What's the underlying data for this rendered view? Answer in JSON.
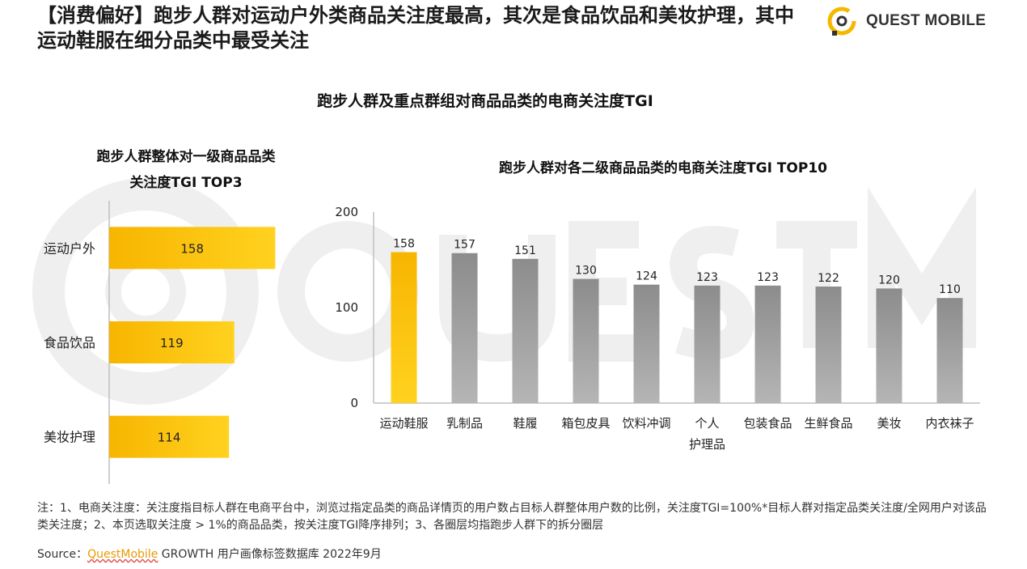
{
  "header": {
    "title": "【消费偏好】跑步人群对运动户外类商品关注度最高，其次是食品饮品和美妆护理，其中运动鞋服在细分品类中最受关注",
    "brand": "QUEST MOBILE",
    "logo_icon": "questmobile-logo-icon"
  },
  "main_title": "跑步人群及重点群组对商品品类的电商关注度TGI",
  "colors": {
    "highlight": "#F7B500",
    "highlight_light": "#FFD21F",
    "gray_bar": "#8C8C8C",
    "gray_light": "#B5B5B5",
    "axis": "#BFBFBF"
  },
  "chart_data": [
    {
      "type": "bar",
      "orientation": "horizontal",
      "title_line1": "跑步人群整体对一级商品品类",
      "title_line2": "关注度TGI TOP3",
      "categories": [
        "运动户外",
        "食品饮品",
        "美妆护理"
      ],
      "values": [
        158,
        119,
        114
      ],
      "xlim": [
        0,
        200
      ],
      "grid": false
    },
    {
      "type": "bar",
      "orientation": "vertical",
      "title": "跑步人群对各二级商品品类的电商关注度TGI TOP10",
      "categories": [
        "运动鞋服",
        "乳制品",
        "鞋履",
        "箱包皮具",
        "饮料冲调",
        "个人护理品",
        "包装食品",
        "生鲜食品",
        "美妆",
        "内衣袜子"
      ],
      "category_lines": [
        [
          "运动鞋服"
        ],
        [
          "乳制品"
        ],
        [
          "鞋履"
        ],
        [
          "箱包皮具"
        ],
        [
          "饮料冲调"
        ],
        [
          "个人",
          "护理品"
        ],
        [
          "包装食品"
        ],
        [
          "生鲜食品"
        ],
        [
          "美妆"
        ],
        [
          "内衣袜子"
        ]
      ],
      "values": [
        158,
        157,
        151,
        130,
        124,
        123,
        123,
        122,
        120,
        110
      ],
      "yticks": [
        "0",
        "100",
        "200"
      ],
      "ylim": [
        0,
        200
      ],
      "highlight_index": 0,
      "grid": false
    }
  ],
  "footer": {
    "note": "注：1、电商关注度：关注度指目标人群在电商平台中，浏览过指定品类的商品详情页的用户数占目标人群整体用户数的比例，关注度TGI=100%*目标人群对指定品类关注度/全网用户对该品类关注度；2、本页选取关注度 > 1%的商品品类，按关注度TGI降序排列；3、各圈层均指跑步人群下的拆分圈层",
    "source_prefix": "Source：",
    "source_brand": "QuestMobile",
    "source_suffix": " GROWTH 用户画像标签数据库 2022年9月"
  }
}
